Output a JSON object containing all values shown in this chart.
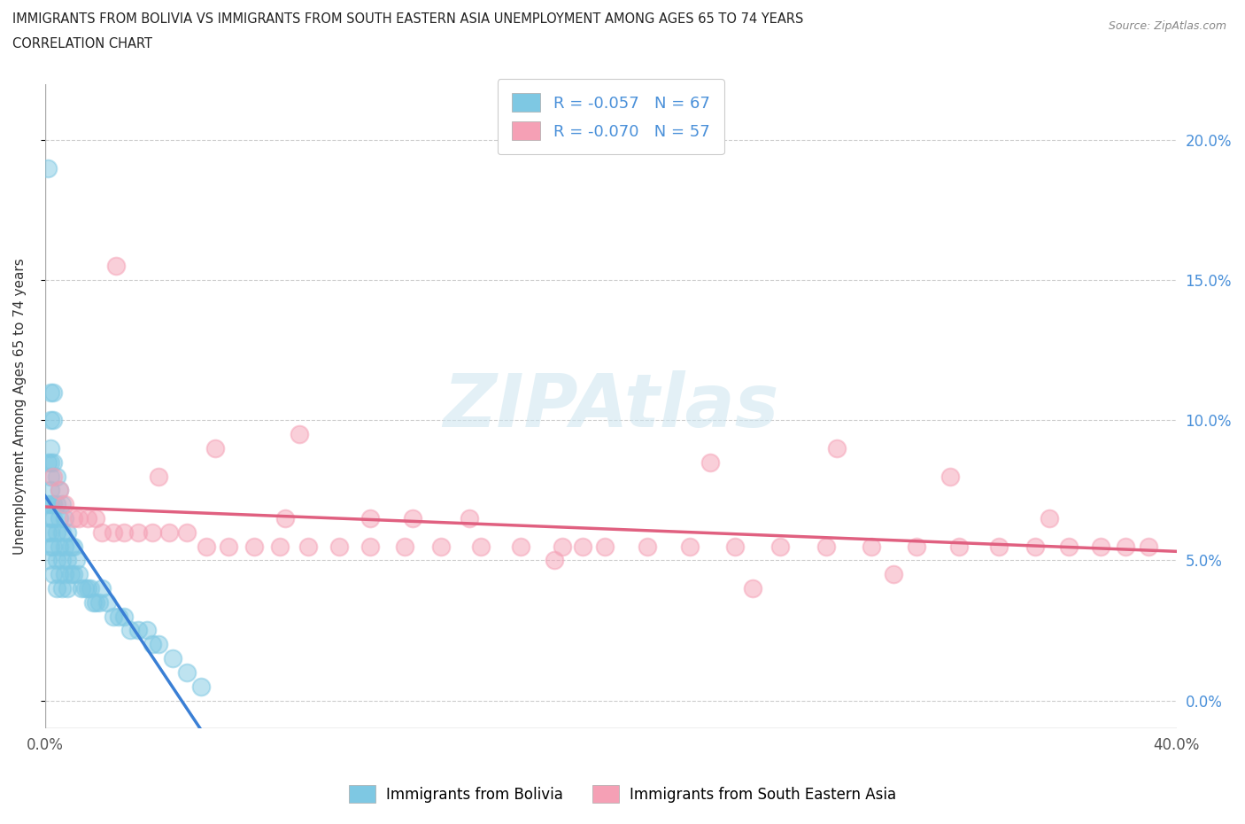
{
  "title_line1": "IMMIGRANTS FROM BOLIVIA VS IMMIGRANTS FROM SOUTH EASTERN ASIA UNEMPLOYMENT AMONG AGES 65 TO 74 YEARS",
  "title_line2": "CORRELATION CHART",
  "source_text": "Source: ZipAtlas.com",
  "ylabel": "Unemployment Among Ages 65 to 74 years",
  "xlim": [
    0.0,
    0.4
  ],
  "ylim": [
    -0.01,
    0.22
  ],
  "yticks": [
    0.0,
    0.05,
    0.1,
    0.15,
    0.2
  ],
  "ytick_labels": [
    "0.0%",
    "5.0%",
    "10.0%",
    "15.0%",
    "20.0%"
  ],
  "xtick_left_label": "0.0%",
  "xtick_right_label": "40.0%",
  "bolivia_color": "#7ec8e3",
  "sea_color": "#f5a0b5",
  "bolivia_trend_color": "#3a7fd5",
  "sea_trend_color": "#e06080",
  "bolivia_trend_dash_color": "#90c0e8",
  "bolivia_R": -0.057,
  "bolivia_N": 67,
  "sea_R": -0.07,
  "sea_N": 57,
  "legend_label_bolivia": "Immigrants from Bolivia",
  "legend_label_sea": "Immigrants from South Eastern Asia",
  "bolivia_x": [
    0.001,
    0.001,
    0.001,
    0.001,
    0.001,
    0.002,
    0.002,
    0.002,
    0.002,
    0.002,
    0.002,
    0.002,
    0.002,
    0.002,
    0.002,
    0.003,
    0.003,
    0.003,
    0.003,
    0.003,
    0.003,
    0.003,
    0.004,
    0.004,
    0.004,
    0.004,
    0.004,
    0.005,
    0.005,
    0.005,
    0.005,
    0.006,
    0.006,
    0.006,
    0.006,
    0.007,
    0.007,
    0.007,
    0.008,
    0.008,
    0.008,
    0.009,
    0.009,
    0.01,
    0.01,
    0.011,
    0.012,
    0.013,
    0.014,
    0.015,
    0.016,
    0.017,
    0.018,
    0.019,
    0.02,
    0.022,
    0.024,
    0.026,
    0.028,
    0.03,
    0.033,
    0.036,
    0.038,
    0.04,
    0.045,
    0.05,
    0.055
  ],
  "bolivia_y": [
    0.19,
    0.085,
    0.07,
    0.06,
    0.05,
    0.11,
    0.1,
    0.09,
    0.085,
    0.08,
    0.075,
    0.07,
    0.065,
    0.06,
    0.055,
    0.11,
    0.1,
    0.085,
    0.07,
    0.065,
    0.055,
    0.045,
    0.08,
    0.07,
    0.06,
    0.05,
    0.04,
    0.075,
    0.065,
    0.055,
    0.045,
    0.07,
    0.06,
    0.05,
    0.04,
    0.065,
    0.055,
    0.045,
    0.06,
    0.05,
    0.04,
    0.055,
    0.045,
    0.055,
    0.045,
    0.05,
    0.045,
    0.04,
    0.04,
    0.04,
    0.04,
    0.035,
    0.035,
    0.035,
    0.04,
    0.035,
    0.03,
    0.03,
    0.03,
    0.025,
    0.025,
    0.025,
    0.02,
    0.02,
    0.015,
    0.01,
    0.005
  ],
  "sea_x": [
    0.003,
    0.005,
    0.007,
    0.01,
    0.012,
    0.015,
    0.018,
    0.02,
    0.024,
    0.028,
    0.033,
    0.038,
    0.044,
    0.05,
    0.057,
    0.065,
    0.074,
    0.083,
    0.093,
    0.104,
    0.115,
    0.127,
    0.14,
    0.154,
    0.168,
    0.183,
    0.198,
    0.213,
    0.228,
    0.244,
    0.26,
    0.276,
    0.292,
    0.308,
    0.323,
    0.337,
    0.35,
    0.362,
    0.373,
    0.382,
    0.39,
    0.025,
    0.04,
    0.06,
    0.085,
    0.115,
    0.15,
    0.19,
    0.235,
    0.28,
    0.32,
    0.18,
    0.09,
    0.13,
    0.25,
    0.3,
    0.355
  ],
  "sea_y": [
    0.08,
    0.075,
    0.07,
    0.065,
    0.065,
    0.065,
    0.065,
    0.06,
    0.06,
    0.06,
    0.06,
    0.06,
    0.06,
    0.06,
    0.055,
    0.055,
    0.055,
    0.055,
    0.055,
    0.055,
    0.055,
    0.055,
    0.055,
    0.055,
    0.055,
    0.055,
    0.055,
    0.055,
    0.055,
    0.055,
    0.055,
    0.055,
    0.055,
    0.055,
    0.055,
    0.055,
    0.055,
    0.055,
    0.055,
    0.055,
    0.055,
    0.155,
    0.08,
    0.09,
    0.065,
    0.065,
    0.065,
    0.055,
    0.085,
    0.09,
    0.08,
    0.05,
    0.095,
    0.065,
    0.04,
    0.045,
    0.065
  ]
}
